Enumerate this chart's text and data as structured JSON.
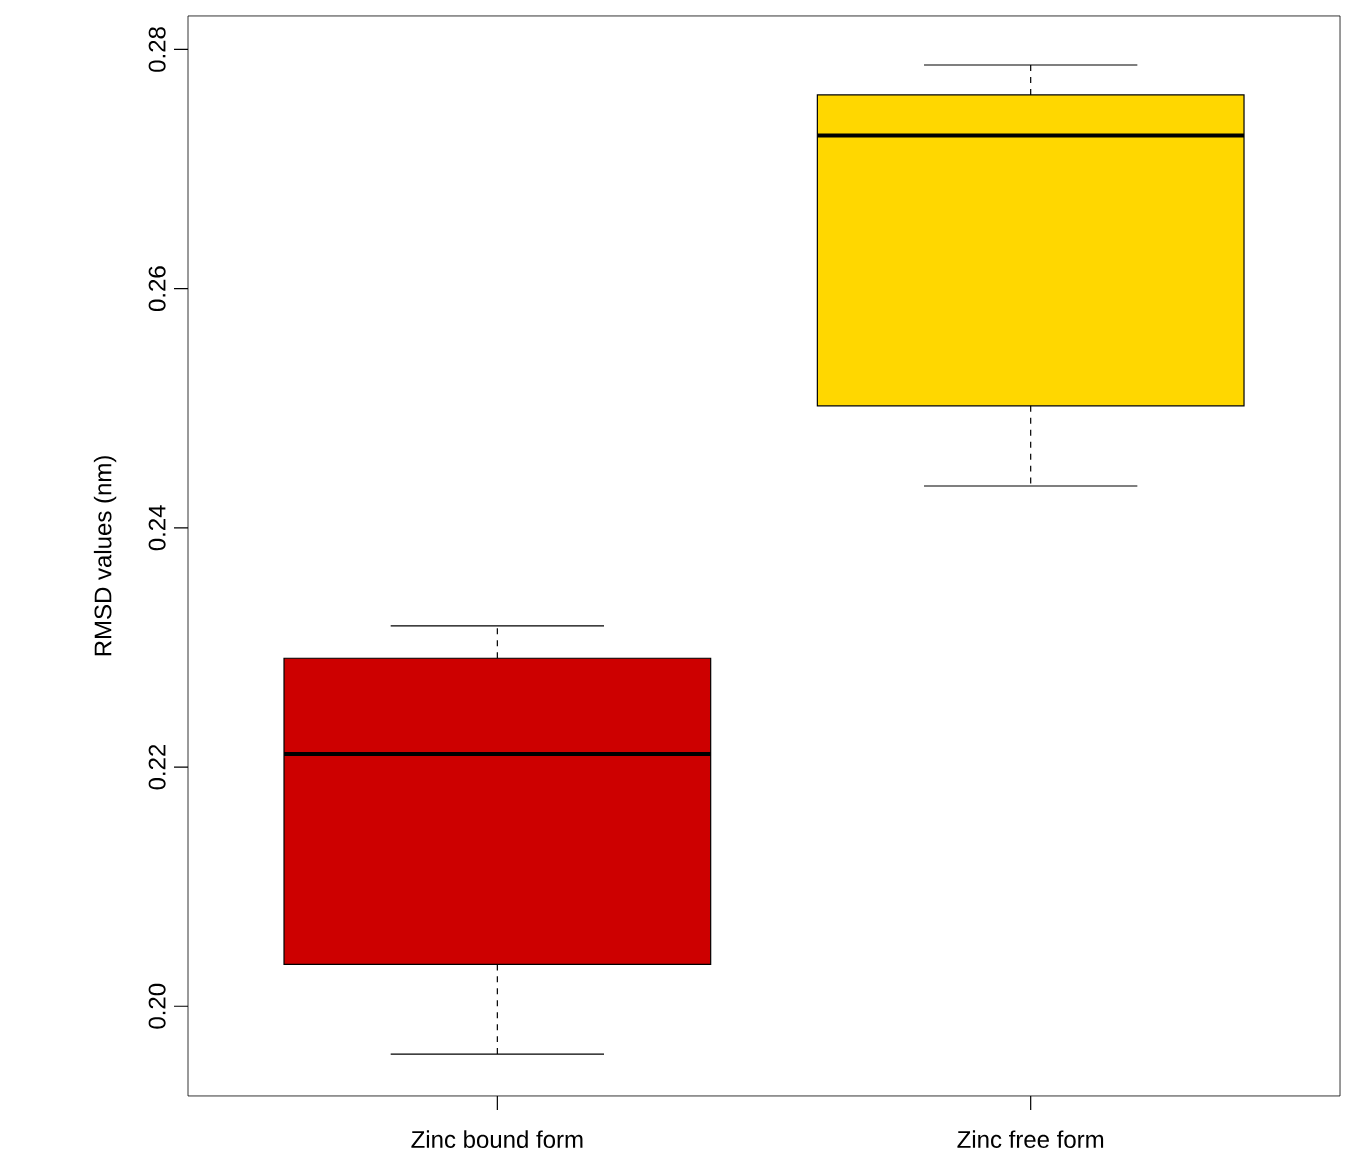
{
  "chart_data": {
    "type": "box",
    "ylabel": "RMSD values (nm)",
    "categories": [
      "Zinc bound form",
      "Zinc free form"
    ],
    "colors": [
      "#cd0000",
      "#ffd700"
    ],
    "boxes": [
      {
        "low": 0.196,
        "q1": 0.2035,
        "median": 0.2211,
        "q3": 0.2291,
        "high": 0.2318
      },
      {
        "low": 0.2435,
        "q1": 0.2502,
        "median": 0.2728,
        "q3": 0.2762,
        "high": 0.2787
      }
    ],
    "ylim": [
      0.1925,
      0.2828
    ],
    "yticks": [
      {
        "value": 0.2,
        "label": "0.20"
      },
      {
        "value": 0.22,
        "label": "0.22"
      },
      {
        "value": 0.24,
        "label": "0.24"
      },
      {
        "value": 0.26,
        "label": "0.26"
      },
      {
        "value": 0.28,
        "label": "0.28"
      }
    ],
    "grid": false
  }
}
